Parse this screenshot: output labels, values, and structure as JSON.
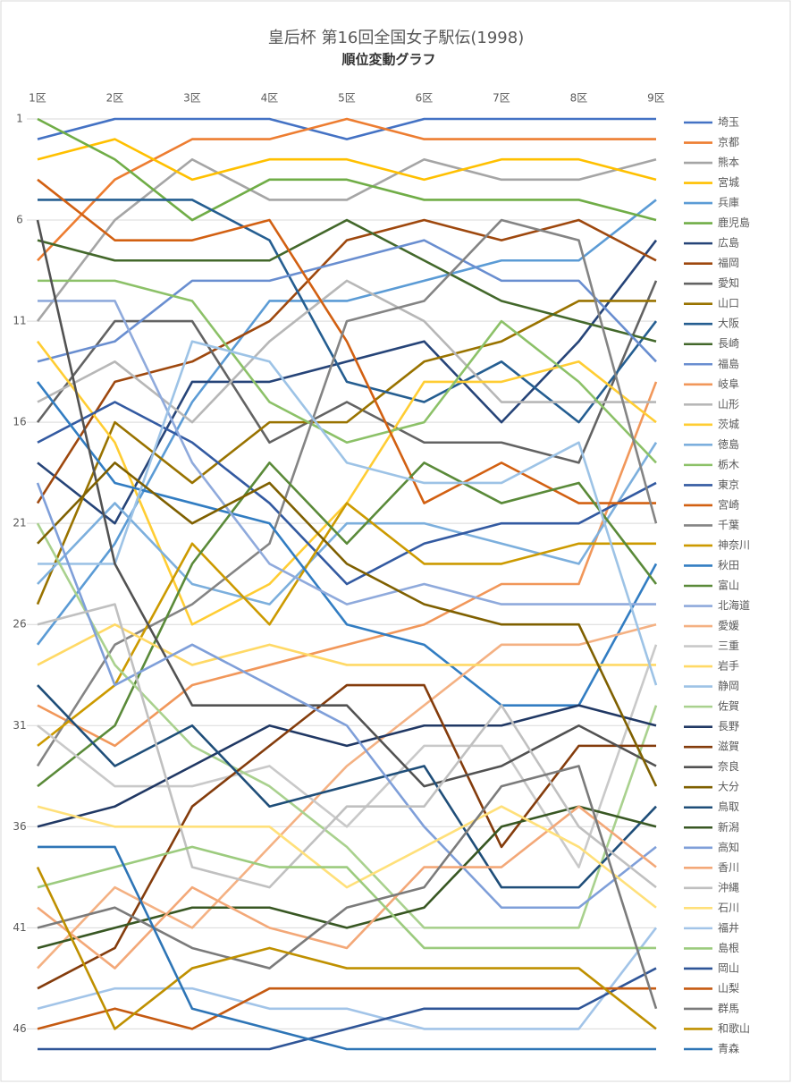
{
  "chart_data": {
    "type": "bump",
    "title": "皇后杯 第16回全国女子駅伝(1998)",
    "subtitle": "順位変動グラフ",
    "categories": [
      "1区",
      "2区",
      "3区",
      "4区",
      "5区",
      "6区",
      "7区",
      "8区",
      "9区"
    ],
    "ylim": [
      1,
      47
    ],
    "y_inverted": true,
    "yticks": [
      1,
      6,
      11,
      16,
      21,
      26,
      31,
      36,
      41,
      46
    ],
    "grid": true,
    "legend": "right",
    "series": [
      {
        "name": "埼玉",
        "color": "#4472C4",
        "values": [
          2,
          1,
          1,
          1,
          2,
          1,
          1,
          1,
          1
        ]
      },
      {
        "name": "京都",
        "color": "#ED7D31",
        "values": [
          8,
          4,
          2,
          2,
          1,
          2,
          2,
          2,
          2
        ]
      },
      {
        "name": "熊本",
        "color": "#A5A5A5",
        "values": [
          11,
          6,
          3,
          5,
          5,
          3,
          4,
          4,
          3
        ]
      },
      {
        "name": "宮城",
        "color": "#FFC000",
        "values": [
          3,
          2,
          4,
          3,
          3,
          4,
          3,
          3,
          4
        ]
      },
      {
        "name": "兵庫",
        "color": "#5B9BD5",
        "values": [
          27,
          22,
          15,
          10,
          10,
          9,
          8,
          8,
          5
        ]
      },
      {
        "name": "鹿児島",
        "color": "#70AD47",
        "values": [
          1,
          3,
          6,
          4,
          4,
          5,
          5,
          5,
          6
        ]
      },
      {
        "name": "広島",
        "color": "#264478",
        "values": [
          18,
          21,
          14,
          14,
          13,
          12,
          16,
          12,
          7
        ]
      },
      {
        "name": "福岡",
        "color": "#9E480E",
        "values": [
          20,
          14,
          13,
          11,
          7,
          6,
          7,
          6,
          8
        ]
      },
      {
        "name": "愛知",
        "color": "#636363",
        "values": [
          16,
          11,
          11,
          17,
          15,
          17,
          17,
          18,
          9
        ]
      },
      {
        "name": "山口",
        "color": "#997300",
        "values": [
          25,
          16,
          19,
          16,
          16,
          13,
          12,
          10,
          10
        ]
      },
      {
        "name": "大阪",
        "color": "#255E91",
        "values": [
          5,
          5,
          5,
          7,
          14,
          15,
          13,
          16,
          11
        ]
      },
      {
        "name": "長崎",
        "color": "#43682B",
        "values": [
          7,
          8,
          8,
          8,
          6,
          8,
          10,
          11,
          12
        ]
      },
      {
        "name": "福島",
        "color": "#698ED0",
        "values": [
          13,
          12,
          9,
          9,
          8,
          7,
          9,
          9,
          13
        ]
      },
      {
        "name": "岐阜",
        "color": "#F1975A",
        "values": [
          30,
          32,
          29,
          28,
          27,
          26,
          24,
          24,
          14
        ]
      },
      {
        "name": "山形",
        "color": "#B7B7B7",
        "values": [
          15,
          13,
          16,
          12,
          9,
          11,
          15,
          15,
          15
        ]
      },
      {
        "name": "茨城",
        "color": "#FFCD33",
        "values": [
          12,
          17,
          26,
          24,
          20,
          14,
          14,
          13,
          16
        ]
      },
      {
        "name": "徳島",
        "color": "#7CAFDD",
        "values": [
          24,
          20,
          24,
          25,
          21,
          21,
          22,
          23,
          17
        ]
      },
      {
        "name": "栃木",
        "color": "#8CC168",
        "values": [
          9,
          9,
          10,
          15,
          17,
          16,
          11,
          14,
          18
        ]
      },
      {
        "name": "東京",
        "color": "#335AA1",
        "values": [
          17,
          15,
          17,
          20,
          24,
          22,
          21,
          21,
          19
        ]
      },
      {
        "name": "宮崎",
        "color": "#D26012",
        "values": [
          4,
          7,
          7,
          6,
          12,
          20,
          18,
          20,
          20
        ]
      },
      {
        "name": "千葉",
        "color": "#848484",
        "values": [
          33,
          27,
          25,
          22,
          11,
          10,
          6,
          7,
          21
        ]
      },
      {
        "name": "神奈川",
        "color": "#CC9A00",
        "values": [
          32,
          29,
          22,
          26,
          20,
          23,
          23,
          22,
          22
        ]
      },
      {
        "name": "秋田",
        "color": "#327DC2",
        "values": [
          14,
          19,
          20,
          21,
          26,
          27,
          30,
          30,
          23
        ]
      },
      {
        "name": "富山",
        "color": "#5A8A39",
        "values": [
          34,
          31,
          23,
          18,
          22,
          18,
          20,
          19,
          24
        ]
      },
      {
        "name": "北海道",
        "color": "#8FAADC",
        "values": [
          10,
          10,
          18,
          23,
          25,
          24,
          25,
          25,
          25
        ]
      },
      {
        "name": "愛媛",
        "color": "#F4B183",
        "values": [
          43,
          39,
          41,
          37,
          33,
          30,
          27,
          27,
          26
        ]
      },
      {
        "name": "三重",
        "color": "#C9C9C9",
        "values": [
          31,
          34,
          34,
          33,
          36,
          32,
          32,
          38,
          27
        ]
      },
      {
        "name": "岩手",
        "color": "#FFD966",
        "values": [
          28,
          26,
          28,
          27,
          28,
          28,
          28,
          28,
          28
        ]
      },
      {
        "name": "静岡",
        "color": "#9DC3E6",
        "values": [
          23,
          23,
          12,
          13,
          18,
          19,
          19,
          17,
          29
        ]
      },
      {
        "name": "佐賀",
        "color": "#A9D18E",
        "values": [
          21,
          28,
          32,
          34,
          37,
          41,
          41,
          41,
          30
        ]
      },
      {
        "name": "長野",
        "color": "#203864",
        "values": [
          36,
          35,
          33,
          31,
          32,
          31,
          31,
          30,
          31
        ]
      },
      {
        "name": "滋賀",
        "color": "#843C0C",
        "values": [
          44,
          42,
          35,
          32,
          29,
          29,
          37,
          32,
          32
        ]
      },
      {
        "name": "奈良",
        "color": "#525252",
        "values": [
          6,
          23,
          30,
          30,
          30,
          34,
          33,
          31,
          33
        ]
      },
      {
        "name": "大分",
        "color": "#7F6000",
        "values": [
          22,
          18,
          21,
          19,
          23,
          25,
          26,
          26,
          34
        ]
      },
      {
        "name": "鳥取",
        "color": "#1F4E79",
        "values": [
          29,
          33,
          31,
          35,
          34,
          33,
          39,
          39,
          35
        ]
      },
      {
        "name": "新潟",
        "color": "#385723",
        "values": [
          42,
          41,
          40,
          40,
          41,
          40,
          36,
          35,
          36
        ]
      },
      {
        "name": "高知",
        "color": "#7F9FD9",
        "values": [
          19,
          29,
          27,
          29,
          31,
          36,
          40,
          40,
          37
        ]
      },
      {
        "name": "香川",
        "color": "#F3A878",
        "values": [
          40,
          43,
          39,
          41,
          42,
          38,
          38,
          35,
          38
        ]
      },
      {
        "name": "沖縄",
        "color": "#C0C0C0",
        "values": [
          26,
          25,
          38,
          39,
          35,
          35,
          30,
          36,
          39
        ]
      },
      {
        "name": "石川",
        "color": "#FFE07A",
        "values": [
          35,
          36,
          36,
          36,
          39,
          37,
          35,
          37,
          40
        ]
      },
      {
        "name": "福井",
        "color": "#A2C4E8",
        "values": [
          45,
          44,
          44,
          45,
          45,
          46,
          46,
          46,
          41
        ]
      },
      {
        "name": "島根",
        "color": "#9CCB7E",
        "values": [
          39,
          38,
          37,
          38,
          38,
          42,
          42,
          42,
          42
        ]
      },
      {
        "name": "岡山",
        "color": "#2F5597",
        "values": [
          47,
          47,
          47,
          47,
          46,
          45,
          45,
          45,
          43
        ]
      },
      {
        "name": "山梨",
        "color": "#C55A11",
        "values": [
          46,
          45,
          46,
          44,
          44,
          44,
          44,
          44,
          44
        ]
      },
      {
        "name": "群馬",
        "color": "#7B7B7B",
        "values": [
          41,
          40,
          42,
          43,
          40,
          39,
          34,
          33,
          45
        ]
      },
      {
        "name": "和歌山",
        "color": "#BF9000",
        "values": [
          38,
          46,
          43,
          42,
          43,
          43,
          43,
          43,
          46
        ]
      },
      {
        "name": "青森",
        "color": "#2E75B6",
        "values": [
          37,
          37,
          45,
          46,
          47,
          47,
          47,
          47,
          47
        ]
      }
    ]
  }
}
